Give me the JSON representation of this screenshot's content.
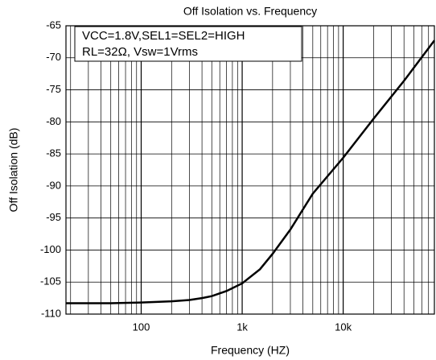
{
  "chart_data": {
    "type": "line",
    "title": "Off  Isolation  vs.  Frequency",
    "x_label": "Frequency (HZ)",
    "y_label": "Off  Isolation (dB)",
    "annotations": [
      "VCC=1.8V,SEL1=SEL2=HIGH",
      "RL=32Ω,  Vsw=1Vrms"
    ],
    "x_scale": "log",
    "xlim": [
      18,
      80000
    ],
    "xticks": [
      {
        "value": 100,
        "label": "100"
      },
      {
        "value": 1000,
        "label": "1k"
      },
      {
        "value": 10000,
        "label": "10k"
      }
    ],
    "xminorticks": [
      20,
      30,
      40,
      50,
      60,
      70,
      80,
      90,
      200,
      300,
      400,
      500,
      600,
      700,
      800,
      900,
      2000,
      3000,
      4000,
      5000,
      6000,
      7000,
      8000,
      9000,
      20000,
      30000,
      40000,
      50000,
      60000,
      70000
    ],
    "ylim": [
      -110,
      -65
    ],
    "yticks": [
      -110,
      -105,
      -100,
      -95,
      -90,
      -85,
      -80,
      -75,
      -70,
      -65
    ],
    "grid": true,
    "series": [
      {
        "color": "#000000",
        "x": [
          18,
          50,
          100,
          200,
          300,
          400,
          500,
          700,
          1000,
          1500,
          2000,
          3000,
          5000,
          10000,
          20000,
          40000,
          80000
        ],
        "values": [
          -108.3,
          -108.3,
          -108.2,
          -108,
          -107.8,
          -107.5,
          -107.2,
          -106.4,
          -105.2,
          -103,
          -100.6,
          -96.8,
          -91.2,
          -85.6,
          -79.5,
          -73.6,
          -67.3
        ]
      }
    ]
  }
}
